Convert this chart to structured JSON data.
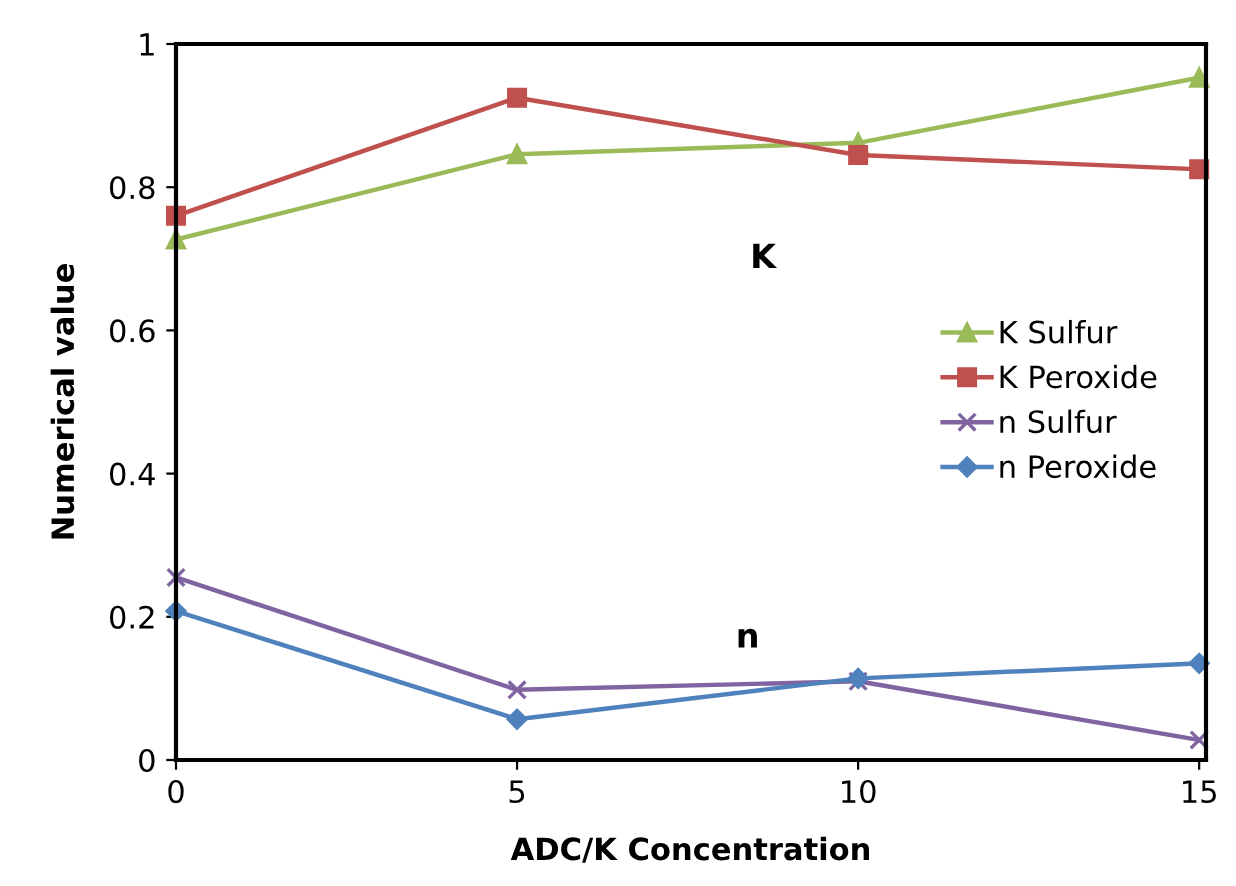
{
  "chart_data": {
    "type": "line",
    "xlabel": "ADC/K Concentration",
    "ylabel": "Numerical value",
    "x": [
      0,
      5,
      10,
      15
    ],
    "xlim": [
      0,
      15.1
    ],
    "xticks": [
      0,
      5,
      10,
      15
    ],
    "ylim": [
      0,
      1
    ],
    "yticks": [
      0,
      0.2,
      0.4,
      0.6,
      0.8,
      1
    ],
    "grid": false,
    "legend": "right",
    "series": [
      {
        "name": "K Sulfur",
        "color": "#9bbb59",
        "marker": "triangle",
        "values": [
          0.727,
          0.846,
          0.862,
          0.953
        ]
      },
      {
        "name": "K Peroxide",
        "color": "#c0504d",
        "marker": "square",
        "values": [
          0.76,
          0.925,
          0.845,
          0.825
        ]
      },
      {
        "name": "n Sulfur",
        "color": "#8064a2",
        "marker": "cross",
        "values": [
          0.255,
          0.098,
          0.11,
          0.028
        ]
      },
      {
        "name": "n Peroxide",
        "color": "#4f81bd",
        "marker": "diamond",
        "values": [
          0.208,
          0.057,
          0.114,
          0.135
        ]
      }
    ],
    "annotations": [
      "K",
      "n"
    ]
  }
}
